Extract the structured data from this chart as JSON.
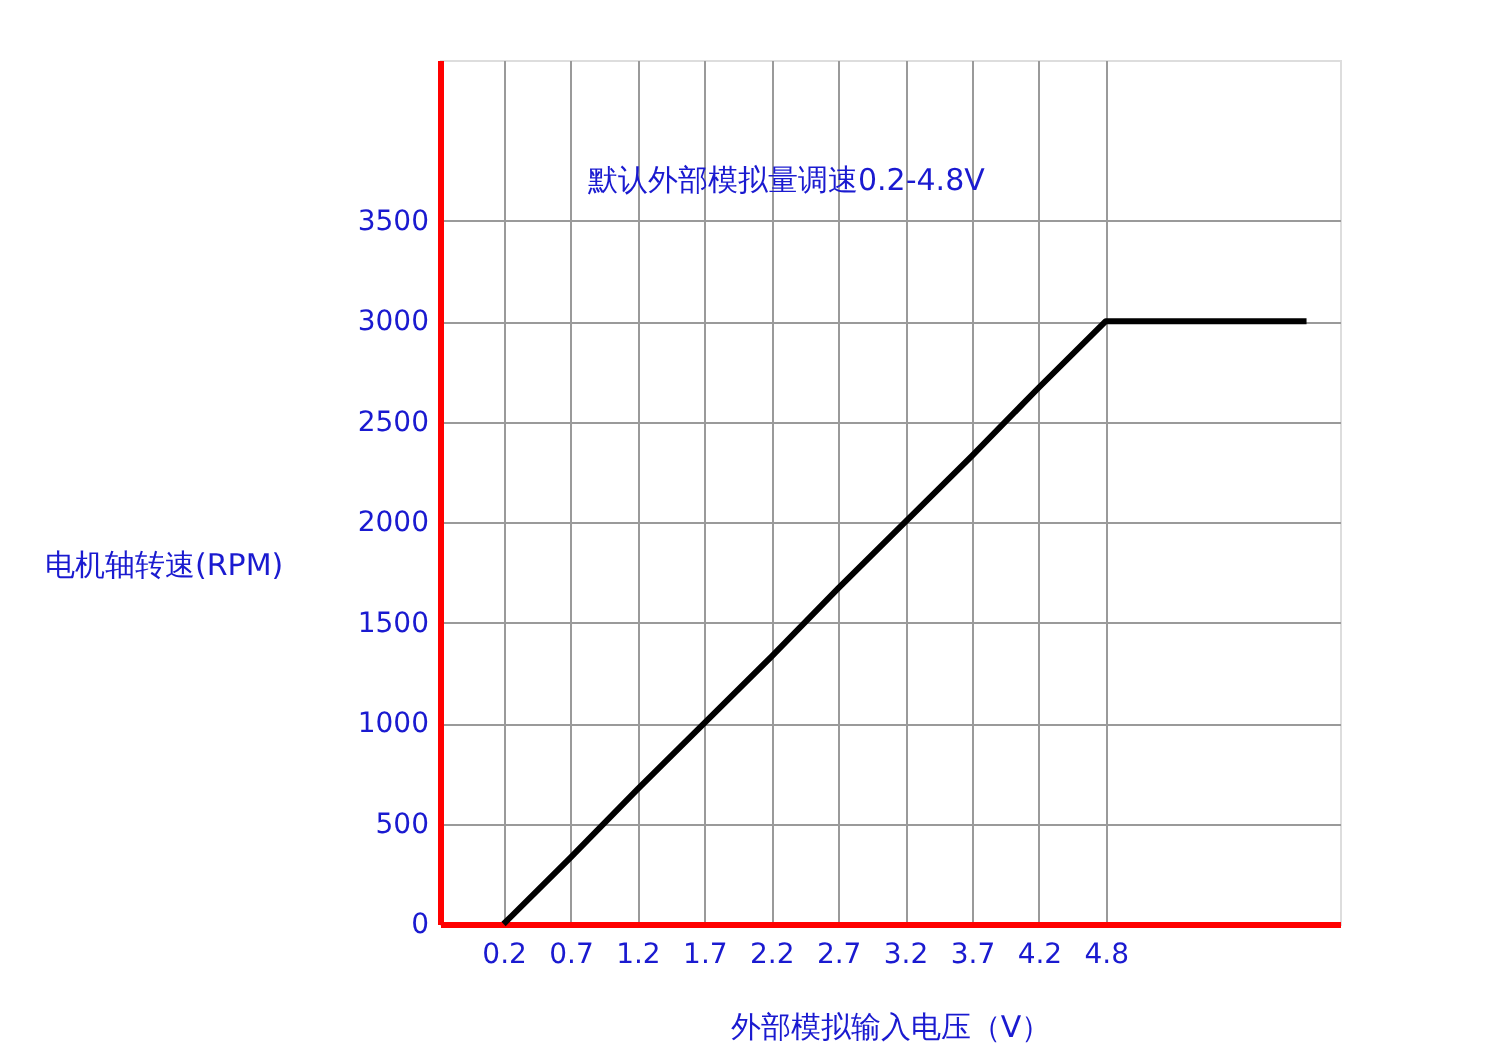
{
  "chart_data": {
    "type": "line",
    "title": "默认外部模拟量调速0.2-4.8V",
    "xlabel": "外部模拟输入电压（V）",
    "ylabel": "电机轴转速(RPM)",
    "categories": [
      "0.2",
      "0.7",
      "1.2",
      "1.7",
      "2.2",
      "2.7",
      "3.2",
      "3.7",
      "4.2",
      "4.8",
      null,
      null,
      null
    ],
    "series": [
      {
        "color": "#000000",
        "values": [
          0,
          330,
          670,
          1000,
          1330,
          1670,
          2000,
          2330,
          2670,
          3000,
          3000,
          3000,
          3000
        ]
      }
    ],
    "ylim": [
      0,
      4300
    ],
    "yticks": [
      0,
      500,
      1000,
      1500,
      2000,
      2500,
      3000,
      3500
    ],
    "grid": true,
    "marker": "none",
    "line_style": "solid"
  }
}
